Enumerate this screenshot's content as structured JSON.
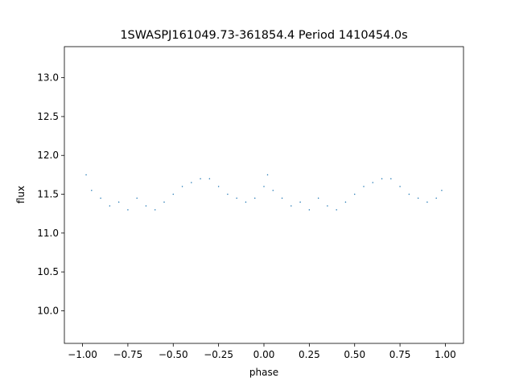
{
  "chart_data": {
    "type": "scatter",
    "title": "1SWASPJ161049.73-361854.4 Period 1410454.0s",
    "xlabel": "phase",
    "ylabel": "flux",
    "xlim": [
      -1.1,
      1.1
    ],
    "ylim": [
      9.58,
      13.4
    ],
    "x_ticks": [
      -1.0,
      -0.75,
      -0.5,
      -0.25,
      0.0,
      0.25,
      0.5,
      0.75,
      1.0
    ],
    "x_tick_labels": [
      "−1.00",
      "−0.75",
      "−0.50",
      "−0.25",
      "0.00",
      "0.25",
      "0.50",
      "0.75",
      "1.00"
    ],
    "y_ticks": [
      10.0,
      10.5,
      11.0,
      11.5,
      12.0,
      12.5,
      13.0
    ],
    "y_tick_labels": [
      "10.0",
      "10.5",
      "11.0",
      "11.5",
      "12.0",
      "12.5",
      "13.0"
    ],
    "marker_color": "#1f77b4",
    "phase_folded": true,
    "series": [
      {
        "x": [
          -0.98,
          -0.95,
          -0.9,
          -0.85,
          -0.8,
          -0.75,
          -0.7,
          -0.65,
          -0.6,
          -0.55,
          -0.5,
          -0.45,
          -0.4,
          -0.35,
          -0.3,
          -0.25,
          -0.2,
          -0.15,
          -0.1,
          -0.05,
          0.0,
          0.02,
          0.05,
          0.1,
          0.15,
          0.2,
          0.25,
          0.3,
          0.35,
          0.4,
          0.45,
          0.5,
          0.55,
          0.6,
          0.65,
          0.7,
          0.75,
          0.8,
          0.85,
          0.9,
          0.95,
          0.98
        ],
        "y": [
          11.75,
          11.55,
          11.45,
          11.35,
          11.4,
          11.3,
          11.45,
          11.35,
          11.3,
          11.4,
          11.5,
          11.6,
          11.65,
          11.7,
          11.7,
          11.6,
          11.5,
          11.45,
          11.4,
          11.45,
          11.6,
          11.75,
          11.55,
          11.45,
          11.35,
          11.4,
          11.3,
          11.45,
          11.35,
          11.3,
          11.4,
          11.5,
          11.6,
          11.65,
          11.7,
          11.7,
          11.6,
          11.5,
          11.45,
          11.4,
          11.45,
          11.55
        ]
      }
    ]
  }
}
